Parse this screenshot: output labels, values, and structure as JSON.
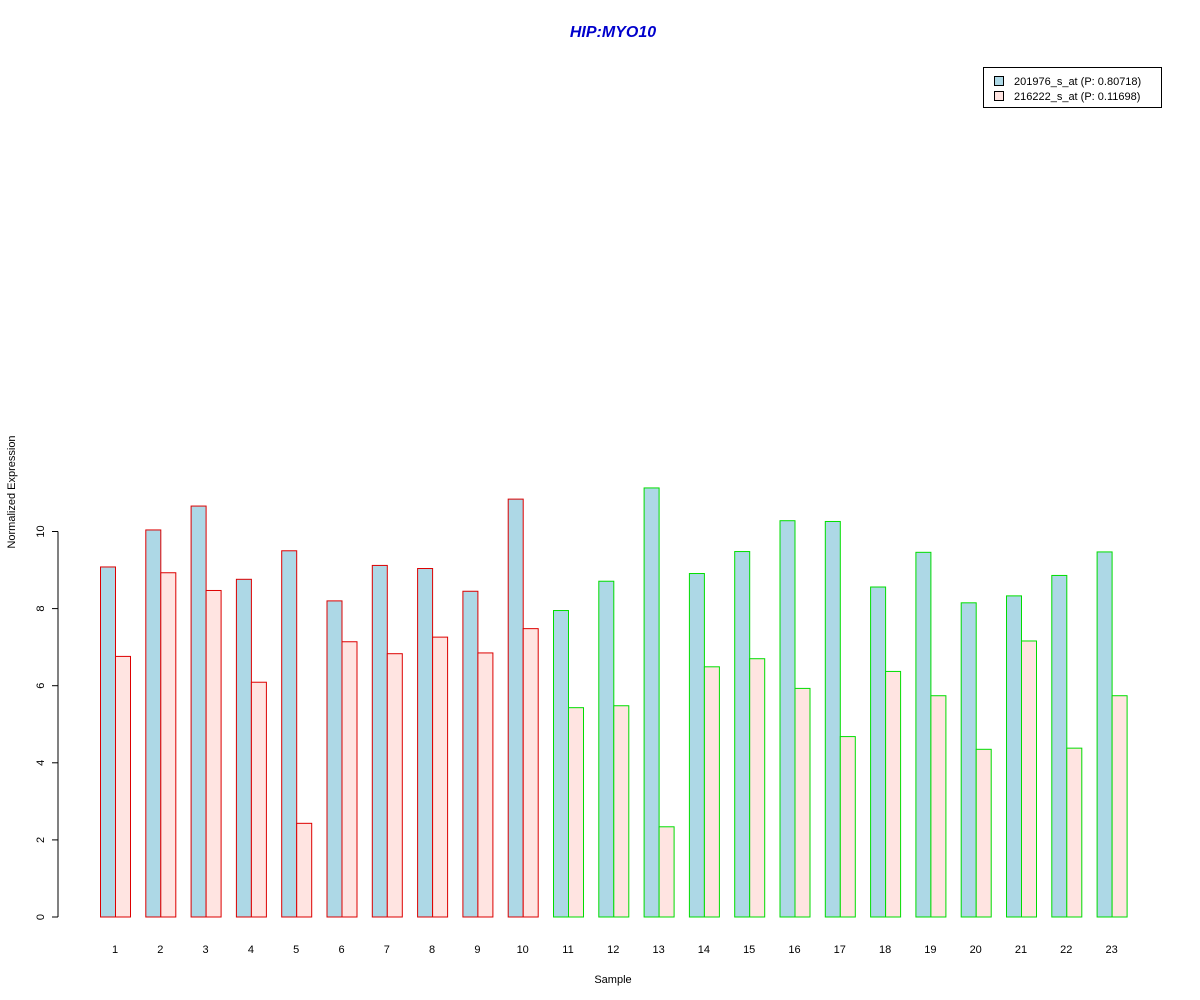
{
  "chart_data": {
    "type": "bar",
    "title": "HIP:MYO10",
    "xlabel": "Sample",
    "ylabel": "Normalized Expression",
    "ylim": [
      0,
      11.2
    ],
    "yticks": [
      0,
      2,
      4,
      6,
      8,
      10
    ],
    "grid": false,
    "legend_position": "top-right",
    "categories": [
      "1",
      "2",
      "3",
      "4",
      "5",
      "6",
      "7",
      "8",
      "9",
      "10",
      "11",
      "12",
      "13",
      "14",
      "15",
      "16",
      "17",
      "18",
      "19",
      "20",
      "21",
      "22",
      "23"
    ],
    "group_border_colors": [
      "#dd0000",
      "#dd0000",
      "#dd0000",
      "#dd0000",
      "#dd0000",
      "#dd0000",
      "#dd0000",
      "#dd0000",
      "#dd0000",
      "#dd0000",
      "#00dd00",
      "#00dd00",
      "#00dd00",
      "#00dd00",
      "#00dd00",
      "#00dd00",
      "#00dd00",
      "#00dd00",
      "#00dd00",
      "#00dd00",
      "#00dd00",
      "#00dd00",
      "#00dd00"
    ],
    "series": [
      {
        "name": "201976_s_at (P: 0.80718)",
        "fill": "#add8e6",
        "values": [
          9.08,
          10.04,
          10.66,
          8.76,
          9.5,
          8.2,
          9.12,
          9.04,
          8.45,
          10.84,
          7.95,
          8.71,
          11.13,
          8.91,
          9.48,
          10.28,
          10.26,
          8.56,
          9.46,
          8.15,
          8.33,
          8.86,
          9.47
        ]
      },
      {
        "name": "216222_s_at (P: 0.11698)",
        "fill": "#ffe4e1",
        "values": [
          6.76,
          8.93,
          8.47,
          6.09,
          2.43,
          7.14,
          6.83,
          7.26,
          6.85,
          7.48,
          5.43,
          5.48,
          2.34,
          6.49,
          6.7,
          5.93,
          4.68,
          6.37,
          5.74,
          4.35,
          7.16,
          4.38,
          5.74
        ]
      }
    ],
    "title_color": "#0000cc"
  }
}
